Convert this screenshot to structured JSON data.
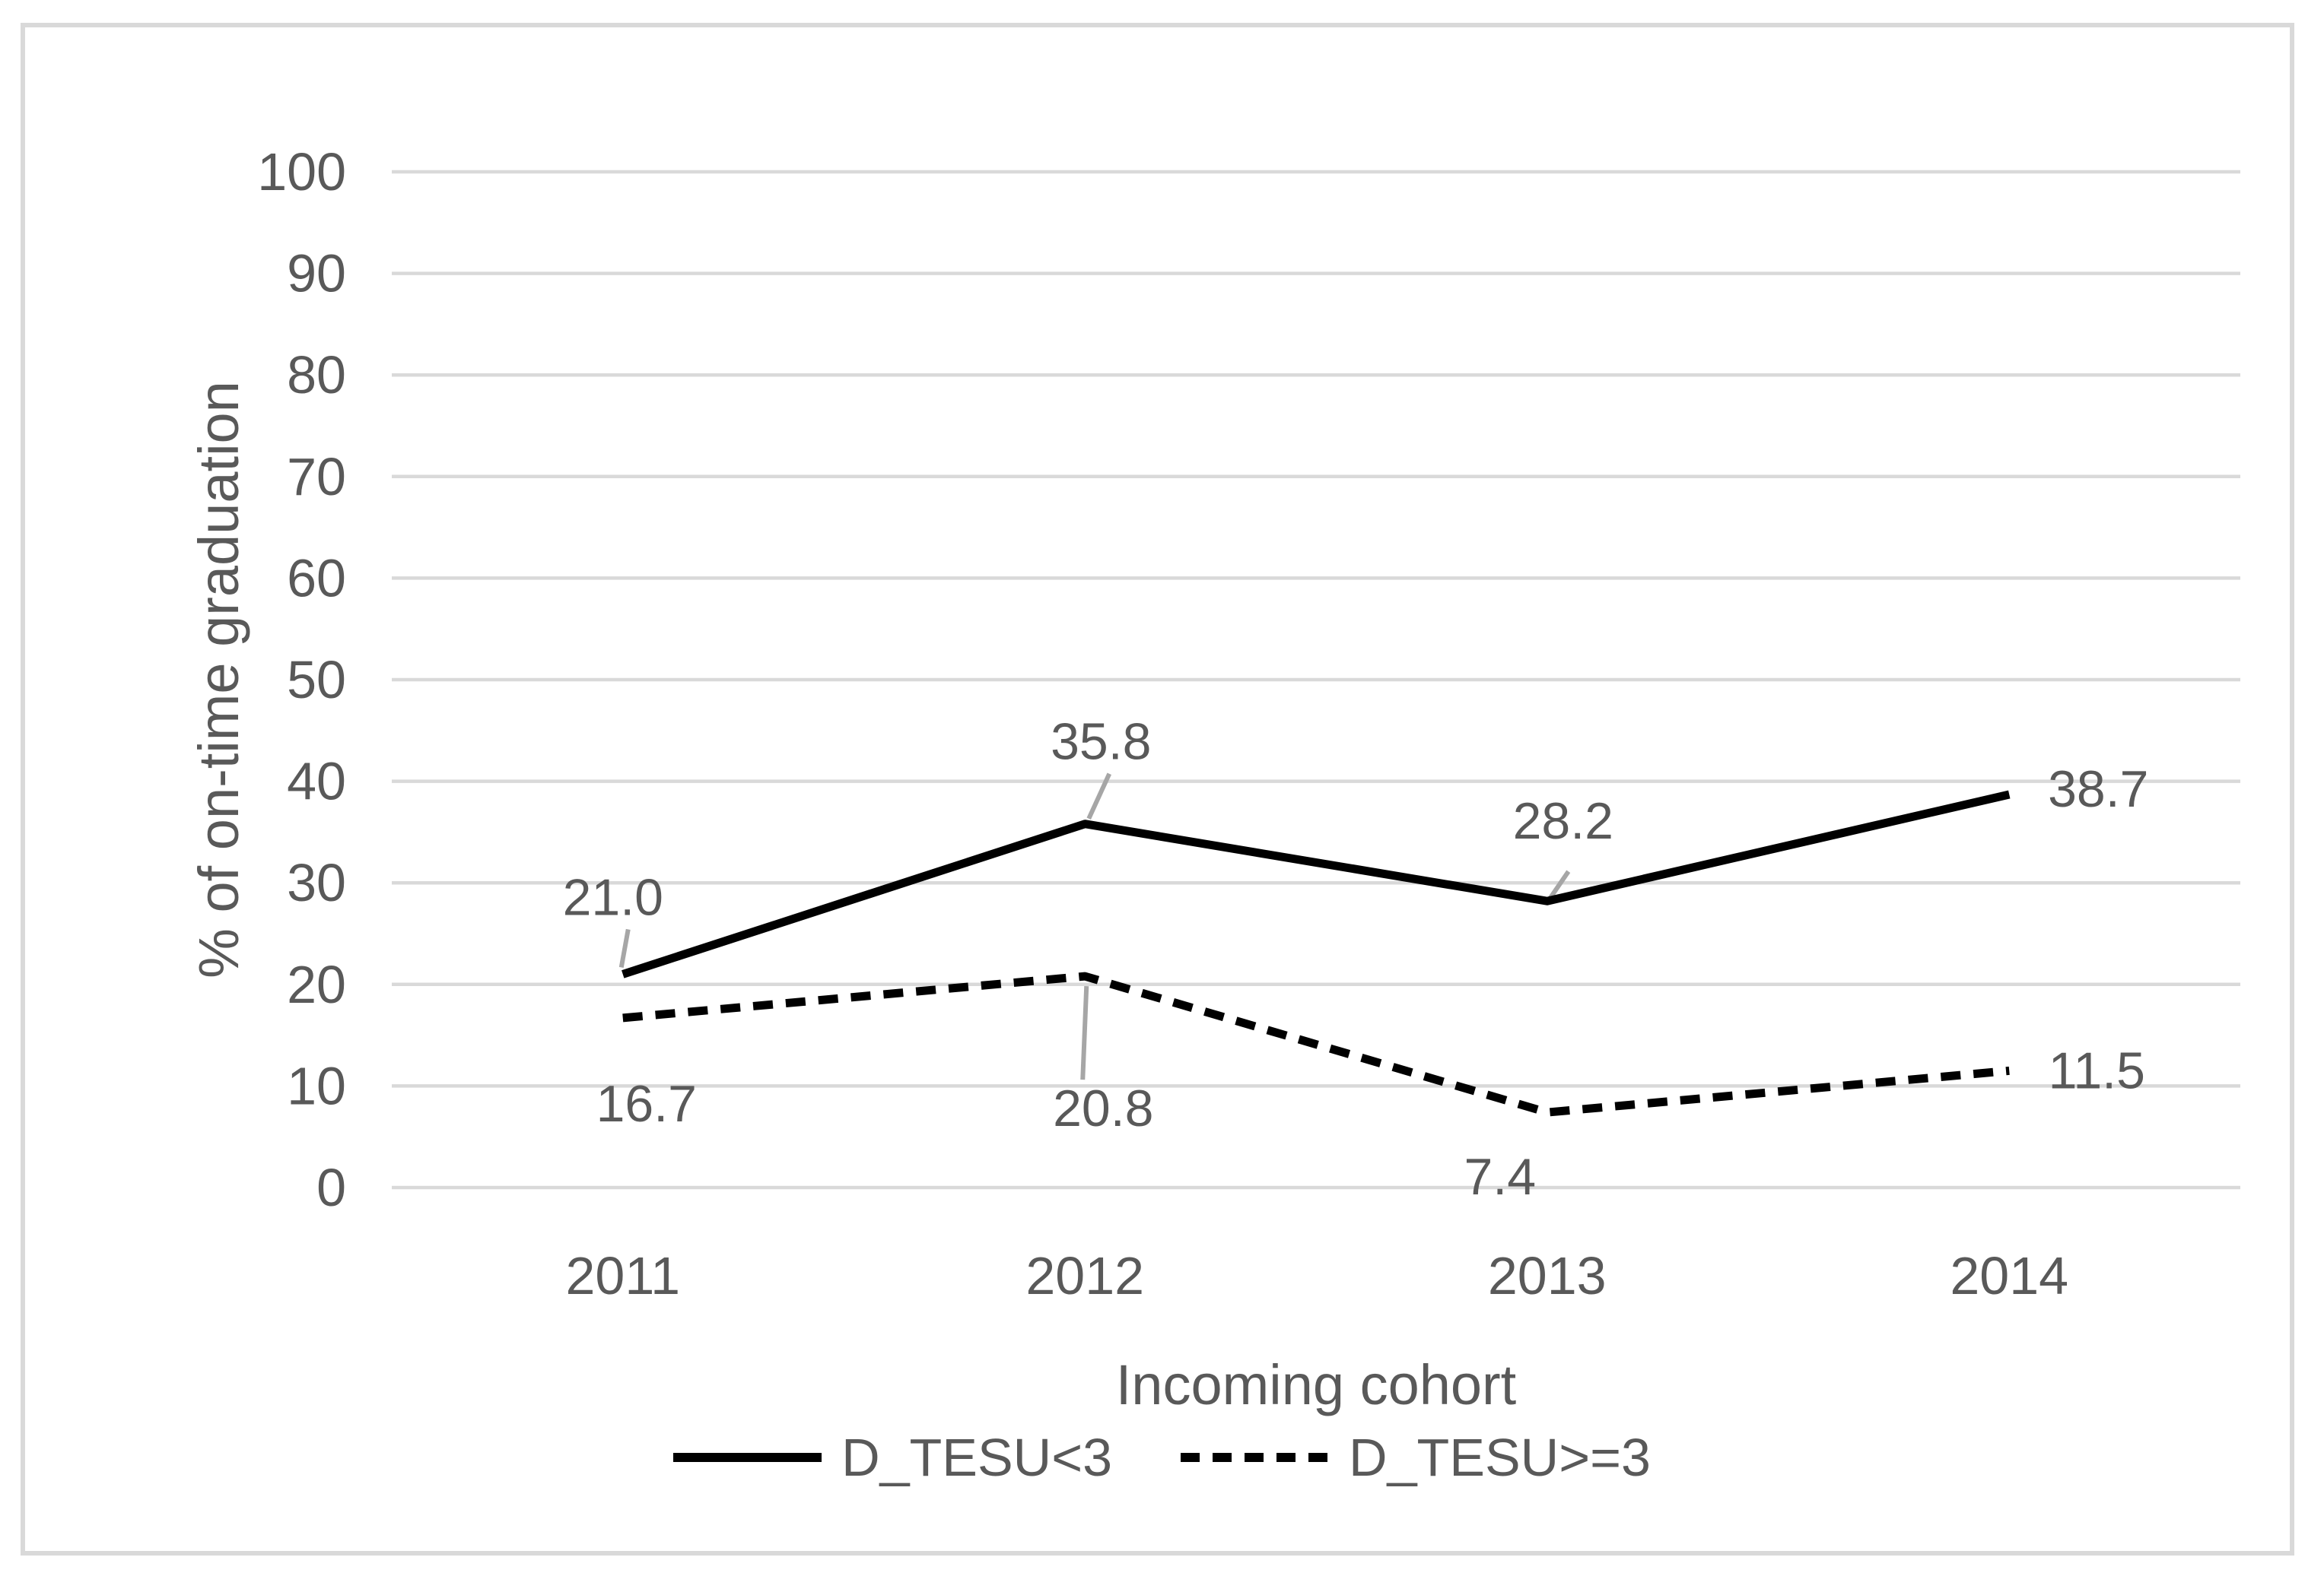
{
  "chart_data": {
    "type": "line",
    "title": "",
    "xlabel": "Incoming cohort",
    "ylabel": "% of on-time graduation",
    "categories": [
      "2011",
      "2012",
      "2013",
      "2014"
    ],
    "series": [
      {
        "name": "D_TESU<3",
        "style": "solid",
        "values": [
          21.0,
          35.8,
          28.2,
          38.7
        ],
        "labels": [
          "21.0",
          "35.8",
          "28.2",
          "38.7"
        ]
      },
      {
        "name": "D_TESU>=3",
        "style": "dashed",
        "values": [
          16.7,
          20.8,
          7.4,
          11.5
        ],
        "labels": [
          "16.7",
          "20.8",
          "7.4",
          "11.5"
        ]
      }
    ],
    "y_axis": {
      "min": 0,
      "max": 100,
      "step": 10,
      "ticks": [
        "0",
        "10",
        "20",
        "30",
        "40",
        "50",
        "60",
        "70",
        "80",
        "90",
        "100"
      ]
    },
    "grid": "horizontal gridlines on",
    "legend_position": "bottom",
    "colors": {
      "series_line": "#000000",
      "text": "#595959",
      "gridline": "#d9d9d9",
      "leader_line": "#a6a6a6",
      "frame_border": "#d9d9d9",
      "background": "#ffffff"
    }
  }
}
